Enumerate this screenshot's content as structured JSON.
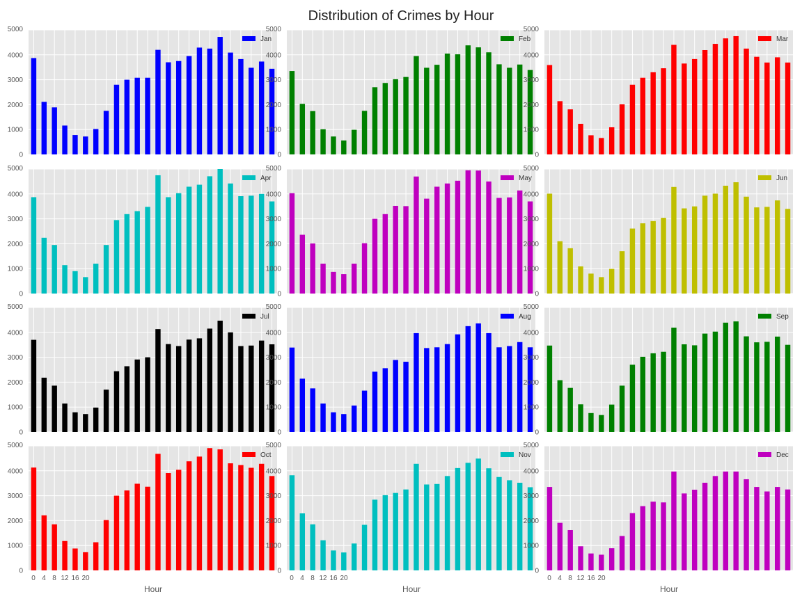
{
  "figure": {
    "title": "Distribution of Crimes by Hour"
  },
  "chart_data": [
    {
      "type": "bar",
      "series": [
        {
          "name": "Jan",
          "values": [
            3870,
            2110,
            1890,
            1160,
            780,
            720,
            1020,
            1750,
            2800,
            3000,
            3080,
            3080,
            4200,
            3700,
            3750,
            3950,
            4290,
            4250,
            4720,
            4090,
            3830,
            3480,
            3730,
            3440
          ]
        }
      ],
      "color": "#0000ff",
      "x": [
        0,
        1,
        2,
        3,
        4,
        5,
        6,
        7,
        8,
        9,
        10,
        11,
        12,
        13,
        14,
        15,
        16,
        17,
        18,
        19,
        20,
        21,
        22,
        23
      ],
      "xticks": [
        "0",
        "4",
        "8",
        "12",
        "16",
        "20"
      ],
      "xlabel": "",
      "ylim": [
        0,
        5000
      ],
      "yticks": [
        "0",
        "1000",
        "2000",
        "3000",
        "4000",
        "5000"
      ],
      "legend": "top-right",
      "grid": true
    },
    {
      "type": "bar",
      "series": [
        {
          "name": "Feb",
          "values": [
            3350,
            2030,
            1740,
            1010,
            720,
            560,
            990,
            1750,
            2700,
            2870,
            3020,
            3110,
            3950,
            3480,
            3600,
            4050,
            4020,
            4380,
            4300,
            4100,
            3620,
            3480,
            3610,
            3390
          ]
        }
      ],
      "color": "#008000",
      "x": [
        0,
        1,
        2,
        3,
        4,
        5,
        6,
        7,
        8,
        9,
        10,
        11,
        12,
        13,
        14,
        15,
        16,
        17,
        18,
        19,
        20,
        21,
        22,
        23
      ],
      "xticks": [
        "0",
        "4",
        "8",
        "12",
        "16",
        "20"
      ],
      "xlabel": "",
      "ylim": [
        0,
        5000
      ],
      "yticks": [
        "0",
        "1000",
        "2000",
        "3000",
        "4000",
        "5000"
      ],
      "legend": "top-right",
      "grid": true
    },
    {
      "type": "bar",
      "series": [
        {
          "name": "Mar",
          "values": [
            3590,
            2140,
            1810,
            1230,
            770,
            660,
            1090,
            2010,
            2800,
            3080,
            3300,
            3460,
            4400,
            3650,
            3830,
            4190,
            4440,
            4660,
            4750,
            4250,
            3920,
            3690,
            3900,
            3690
          ]
        }
      ],
      "color": "#ff0000",
      "x": [
        0,
        1,
        2,
        3,
        4,
        5,
        6,
        7,
        8,
        9,
        10,
        11,
        12,
        13,
        14,
        15,
        16,
        17,
        18,
        19,
        20,
        21,
        22,
        23
      ],
      "xticks": [
        "0",
        "4",
        "8",
        "12",
        "16",
        "20"
      ],
      "xlabel": "",
      "ylim": [
        0,
        5000
      ],
      "yticks": [
        "0",
        "1000",
        "2000",
        "3000",
        "4000",
        "5000"
      ],
      "legend": "top-right",
      "grid": true
    },
    {
      "type": "bar",
      "series": [
        {
          "name": "Apr",
          "values": [
            3870,
            2240,
            1950,
            1140,
            900,
            660,
            1200,
            1950,
            2950,
            3190,
            3310,
            3480,
            4750,
            3870,
            4030,
            4290,
            4370,
            4710,
            5000,
            4420,
            3910,
            3930,
            4000,
            3700
          ]
        }
      ],
      "color": "#00bfbf",
      "x": [
        0,
        1,
        2,
        3,
        4,
        5,
        6,
        7,
        8,
        9,
        10,
        11,
        12,
        13,
        14,
        15,
        16,
        17,
        18,
        19,
        20,
        21,
        22,
        23
      ],
      "xticks": [
        "0",
        "4",
        "8",
        "12",
        "16",
        "20"
      ],
      "xlabel": "",
      "ylim": [
        0,
        5000
      ],
      "yticks": [
        "0",
        "1000",
        "2000",
        "3000",
        "4000",
        "5000"
      ],
      "legend": "top-right",
      "grid": true
    },
    {
      "type": "bar",
      "series": [
        {
          "name": "May",
          "values": [
            4030,
            2360,
            2010,
            1200,
            870,
            780,
            1200,
            2020,
            3000,
            3190,
            3520,
            3510,
            4700,
            3810,
            4290,
            4420,
            4530,
            4950,
            4940,
            4500,
            3840,
            3860,
            4140,
            3700
          ]
        }
      ],
      "color": "#bf00bf",
      "x": [
        0,
        1,
        2,
        3,
        4,
        5,
        6,
        7,
        8,
        9,
        10,
        11,
        12,
        13,
        14,
        15,
        16,
        17,
        18,
        19,
        20,
        21,
        22,
        23
      ],
      "xticks": [
        "0",
        "4",
        "8",
        "12",
        "16",
        "20"
      ],
      "xlabel": "",
      "ylim": [
        0,
        5000
      ],
      "yticks": [
        "0",
        "1000",
        "2000",
        "3000",
        "4000",
        "5000"
      ],
      "legend": "top-right",
      "grid": true
    },
    {
      "type": "bar",
      "series": [
        {
          "name": "Jun",
          "values": [
            4010,
            2100,
            1820,
            1090,
            800,
            660,
            990,
            1700,
            2610,
            2820,
            2910,
            3040,
            4280,
            3420,
            3500,
            3930,
            4010,
            4330,
            4470,
            3890,
            3460,
            3480,
            3740,
            3400
          ]
        }
      ],
      "color": "#bfbf00",
      "x": [
        0,
        1,
        2,
        3,
        4,
        5,
        6,
        7,
        8,
        9,
        10,
        11,
        12,
        13,
        14,
        15,
        16,
        17,
        18,
        19,
        20,
        21,
        22,
        23
      ],
      "xticks": [
        "0",
        "4",
        "8",
        "12",
        "16",
        "20"
      ],
      "xlabel": "",
      "ylim": [
        0,
        5000
      ],
      "yticks": [
        "0",
        "1000",
        "2000",
        "3000",
        "4000",
        "5000"
      ],
      "legend": "top-right",
      "grid": true
    },
    {
      "type": "bar",
      "series": [
        {
          "name": "Jul",
          "values": [
            3700,
            2180,
            1860,
            1140,
            790,
            720,
            980,
            1700,
            2440,
            2640,
            2910,
            3000,
            4130,
            3530,
            3450,
            3710,
            3760,
            4150,
            4470,
            4000,
            3450,
            3470,
            3670,
            3520
          ]
        }
      ],
      "color": "#000000",
      "x": [
        0,
        1,
        2,
        3,
        4,
        5,
        6,
        7,
        8,
        9,
        10,
        11,
        12,
        13,
        14,
        15,
        16,
        17,
        18,
        19,
        20,
        21,
        22,
        23
      ],
      "xticks": [
        "0",
        "4",
        "8",
        "12",
        "16",
        "20"
      ],
      "xlabel": "",
      "ylim": [
        0,
        5000
      ],
      "yticks": [
        "0",
        "1000",
        "2000",
        "3000",
        "4000",
        "5000"
      ],
      "legend": "top-right",
      "grid": true
    },
    {
      "type": "bar",
      "series": [
        {
          "name": "Aug",
          "values": [
            3390,
            2140,
            1750,
            1140,
            790,
            720,
            1060,
            1660,
            2420,
            2560,
            2890,
            2820,
            3970,
            3370,
            3400,
            3530,
            3920,
            4250,
            4360,
            3970,
            3400,
            3450,
            3610,
            3400
          ]
        }
      ],
      "color": "#0000ff",
      "x": [
        0,
        1,
        2,
        3,
        4,
        5,
        6,
        7,
        8,
        9,
        10,
        11,
        12,
        13,
        14,
        15,
        16,
        17,
        18,
        19,
        20,
        21,
        22,
        23
      ],
      "xticks": [
        "0",
        "4",
        "8",
        "12",
        "16",
        "20"
      ],
      "xlabel": "",
      "ylim": [
        0,
        5000
      ],
      "yticks": [
        "0",
        "1000",
        "2000",
        "3000",
        "4000",
        "5000"
      ],
      "legend": "top-right",
      "grid": true
    },
    {
      "type": "bar",
      "series": [
        {
          "name": "Sep",
          "values": [
            3470,
            2080,
            1770,
            1110,
            760,
            680,
            1100,
            1860,
            2700,
            3020,
            3160,
            3220,
            4190,
            3520,
            3480,
            3950,
            4030,
            4390,
            4440,
            3840,
            3600,
            3620,
            3830,
            3500
          ]
        }
      ],
      "color": "#008000",
      "x": [
        0,
        1,
        2,
        3,
        4,
        5,
        6,
        7,
        8,
        9,
        10,
        11,
        12,
        13,
        14,
        15,
        16,
        17,
        18,
        19,
        20,
        21,
        22,
        23
      ],
      "xticks": [
        "0",
        "4",
        "8",
        "12",
        "16",
        "20"
      ],
      "xlabel": "",
      "ylim": [
        0,
        5000
      ],
      "yticks": [
        "0",
        "1000",
        "2000",
        "3000",
        "4000",
        "5000"
      ],
      "legend": "top-right",
      "grid": true
    },
    {
      "type": "bar",
      "series": [
        {
          "name": "Oct",
          "values": [
            4130,
            2210,
            1850,
            1180,
            880,
            730,
            1130,
            2020,
            3000,
            3210,
            3480,
            3360,
            4680,
            3910,
            4040,
            4380,
            4570,
            4910,
            4860,
            4300,
            4230,
            4120,
            4280,
            3790
          ]
        }
      ],
      "color": "#ff0000",
      "x": [
        0,
        1,
        2,
        3,
        4,
        5,
        6,
        7,
        8,
        9,
        10,
        11,
        12,
        13,
        14,
        15,
        16,
        17,
        18,
        19,
        20,
        21,
        22,
        23
      ],
      "xticks": [
        "0",
        "4",
        "8",
        "12",
        "16",
        "20"
      ],
      "xlabel": "Hour",
      "ylim": [
        0,
        5000
      ],
      "yticks": [
        "0",
        "1000",
        "2000",
        "3000",
        "4000",
        "5000"
      ],
      "legend": "top-right",
      "grid": true
    },
    {
      "type": "bar",
      "series": [
        {
          "name": "Nov",
          "values": [
            3820,
            2290,
            1850,
            1210,
            800,
            720,
            1080,
            1830,
            2840,
            3020,
            3110,
            3250,
            4280,
            3450,
            3470,
            3790,
            4110,
            4320,
            4490,
            4100,
            3750,
            3620,
            3520,
            3340
          ]
        }
      ],
      "color": "#00bfbf",
      "x": [
        0,
        1,
        2,
        3,
        4,
        5,
        6,
        7,
        8,
        9,
        10,
        11,
        12,
        13,
        14,
        15,
        16,
        17,
        18,
        19,
        20,
        21,
        22,
        23
      ],
      "xticks": [
        "0",
        "4",
        "8",
        "12",
        "16",
        "20"
      ],
      "xlabel": "Hour",
      "ylim": [
        0,
        5000
      ],
      "yticks": [
        "0",
        "1000",
        "2000",
        "3000",
        "4000",
        "5000"
      ],
      "legend": "top-right",
      "grid": true
    },
    {
      "type": "bar",
      "series": [
        {
          "name": "Dec",
          "values": [
            3350,
            1910,
            1620,
            970,
            680,
            630,
            890,
            1380,
            2300,
            2580,
            2760,
            2730,
            3970,
            3090,
            3240,
            3520,
            3790,
            3970,
            3970,
            3660,
            3350,
            3170,
            3350,
            3250
          ]
        }
      ],
      "color": "#bf00bf",
      "x": [
        0,
        1,
        2,
        3,
        4,
        5,
        6,
        7,
        8,
        9,
        10,
        11,
        12,
        13,
        14,
        15,
        16,
        17,
        18,
        19,
        20,
        21,
        22,
        23
      ],
      "xticks": [
        "0",
        "4",
        "8",
        "12",
        "16",
        "20"
      ],
      "xlabel": "Hour",
      "ylim": [
        0,
        5000
      ],
      "yticks": [
        "0",
        "1000",
        "2000",
        "3000",
        "4000",
        "5000"
      ],
      "legend": "top-right",
      "grid": true
    }
  ]
}
